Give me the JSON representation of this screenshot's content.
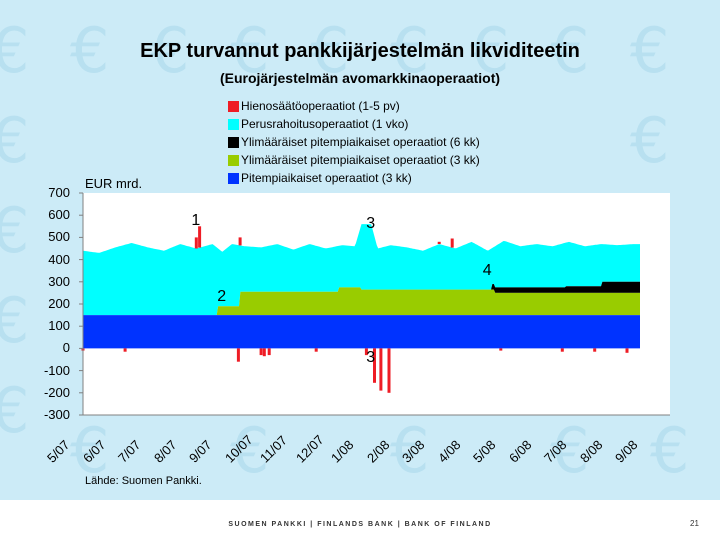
{
  "slide": {
    "title": "EKP turvannut pankkijärjestelmän likviditeetin",
    "subtitle": "(Eurojärjestelmän avomarkkinaoperaatiot)",
    "source": "Lähde: Suomen Pankki.",
    "footer": "SUOMEN PANKKI | FINLANDS BANK | BANK OF FINLAND",
    "page_number": "21",
    "background_symbol": "€"
  },
  "colors": {
    "background": "#ccebf7",
    "watermark": "#b8e0f0",
    "fine_tuning": "#ee1c25",
    "main_refinancing": "#00ffff",
    "ltro_6m": "#000000",
    "ltro_3m_extra": "#99cc00",
    "ltro_3m": "#0033ff"
  },
  "chart_data": {
    "type": "area",
    "title": "",
    "ylabel": "EUR mrd.",
    "ylim": [
      -300,
      700
    ],
    "yticks": [
      "700",
      "600",
      "500",
      "400",
      "300",
      "200",
      "100",
      "0",
      "-100",
      "-200",
      "-300"
    ],
    "categories": [
      "5/07",
      "6/07",
      "7/07",
      "8/07",
      "9/07",
      "10/07",
      "11/07",
      "12/07",
      "1/08",
      "2/08",
      "3/08",
      "4/08",
      "5/08",
      "6/08",
      "7/08",
      "8/08",
      "9/08"
    ],
    "legend": [
      {
        "key": "fine_tuning",
        "label": "Hienosäätöoperaatiot (1-5 pv)"
      },
      {
        "key": "main_refinancing",
        "label": "Perusrahoitusoperaatiot (1 vko)"
      },
      {
        "key": "ltro_6m",
        "label": "Ylimääräiset pitempiaikaiset operaatiot (6 kk)"
      },
      {
        "key": "ltro_3m_extra",
        "label": "Ylimääräiset pitempiaikaiset operaatiot (3 kk)"
      },
      {
        "key": "ltro_3m",
        "label": "Pitempiaikaiset operaatiot (3 kk)"
      }
    ],
    "x_range": [
      0,
      17.2
    ],
    "series": [
      {
        "name": "Pitempiaikaiset operaatiot (3 kk)",
        "key": "ltro_3m",
        "type": "stacked_area",
        "points": [
          [
            0,
            150
          ],
          [
            17.2,
            150
          ]
        ]
      },
      {
        "name": "Ylimääräiset pitempiaikaiset operaatiot (3 kk)",
        "key": "ltro_3m_extra",
        "type": "stacked_area",
        "points": [
          [
            0,
            0
          ],
          [
            4.15,
            0
          ],
          [
            4.15,
            40
          ],
          [
            4.85,
            40
          ],
          [
            4.85,
            105
          ],
          [
            7.9,
            105
          ],
          [
            7.9,
            125
          ],
          [
            8.6,
            125
          ],
          [
            8.6,
            115
          ],
          [
            12.7,
            115
          ],
          [
            12.7,
            100
          ],
          [
            17.2,
            100
          ]
        ]
      },
      {
        "name": "Ylimääräiset pitempiaikaiset operaatiot (6 kk)",
        "key": "ltro_6m",
        "type": "stacked_area",
        "points": [
          [
            0,
            0
          ],
          [
            12.6,
            0
          ],
          [
            12.6,
            25
          ],
          [
            14.0,
            25
          ],
          [
            14.0,
            25
          ],
          [
            14.9,
            25
          ],
          [
            14.9,
            30
          ],
          [
            16.0,
            30
          ],
          [
            16.0,
            50
          ],
          [
            17.2,
            50
          ]
        ]
      },
      {
        "name": "Perusrahoitusoperaatiot (1 vko)",
        "key": "main_refinancing",
        "type": "top_line",
        "points": [
          [
            0,
            440
          ],
          [
            0.5,
            430
          ],
          [
            1.0,
            455
          ],
          [
            1.5,
            475
          ],
          [
            2.0,
            455
          ],
          [
            2.5,
            440
          ],
          [
            3.0,
            470
          ],
          [
            3.5,
            450
          ],
          [
            4.0,
            470
          ],
          [
            4.3,
            435
          ],
          [
            4.6,
            470
          ],
          [
            5.0,
            460
          ],
          [
            5.5,
            455
          ],
          [
            6.0,
            470
          ],
          [
            6.5,
            445
          ],
          [
            7.0,
            470
          ],
          [
            7.5,
            450
          ],
          [
            8.0,
            465
          ],
          [
            8.4,
            460
          ],
          [
            8.6,
            560
          ],
          [
            8.9,
            560
          ],
          [
            9.1,
            450
          ],
          [
            9.5,
            465
          ],
          [
            10.0,
            455
          ],
          [
            10.5,
            440
          ],
          [
            11.0,
            470
          ],
          [
            11.5,
            450
          ],
          [
            12.0,
            480
          ],
          [
            12.5,
            440
          ],
          [
            13.0,
            485
          ],
          [
            13.5,
            460
          ],
          [
            14.0,
            470
          ],
          [
            14.5,
            460
          ],
          [
            15.0,
            480
          ],
          [
            15.5,
            460
          ],
          [
            16.0,
            470
          ],
          [
            16.5,
            465
          ],
          [
            17.0,
            470
          ],
          [
            17.2,
            470
          ]
        ]
      },
      {
        "name": "Hienosäätöoperaatiot (1-5 pv)",
        "key": "fine_tuning",
        "type": "bars",
        "points": [
          [
            3.5,
            500
          ],
          [
            3.6,
            550
          ],
          [
            4.85,
            500
          ],
          [
            11.0,
            480
          ],
          [
            11.4,
            495
          ],
          [
            0,
            -10
          ],
          [
            1.3,
            -15
          ],
          [
            4.8,
            -60
          ],
          [
            5.5,
            -30
          ],
          [
            5.6,
            -35
          ],
          [
            5.75,
            -30
          ],
          [
            7.2,
            -15
          ],
          [
            8.75,
            -30
          ],
          [
            9.0,
            -155
          ],
          [
            9.2,
            -190
          ],
          [
            9.45,
            -200
          ],
          [
            12.9,
            -10
          ],
          [
            14.8,
            -15
          ],
          [
            15.8,
            -15
          ],
          [
            16.8,
            -20
          ]
        ]
      }
    ],
    "annotations": [
      {
        "text": "1",
        "x": 3.5,
        "y": 575
      },
      {
        "text": "2",
        "x": 4.3,
        "y": 230
      },
      {
        "text": "3",
        "x": 8.9,
        "y": 560
      },
      {
        "text": "3",
        "x": 8.9,
        "y": -45
      },
      {
        "text": "4",
        "x": 12.5,
        "y": 350
      }
    ]
  }
}
